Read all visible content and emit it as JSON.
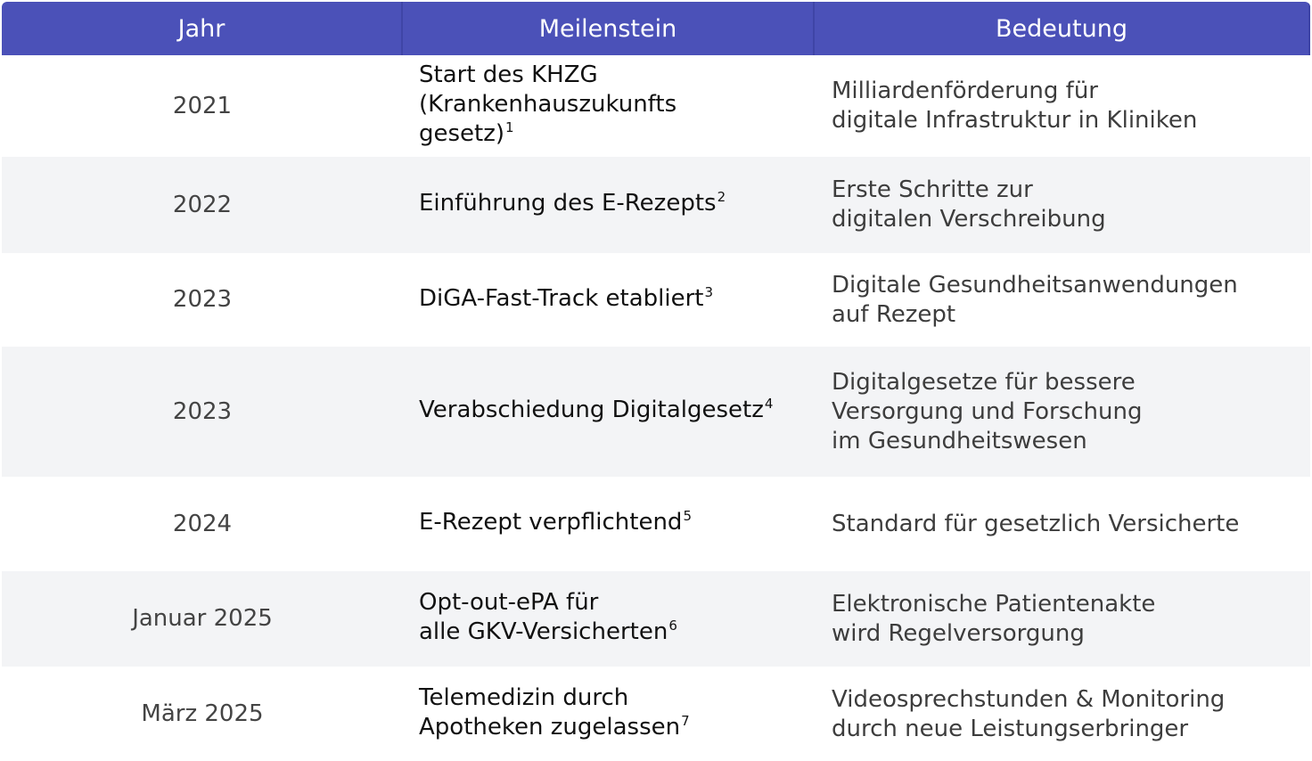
{
  "table": {
    "headers": [
      "Jahr",
      "Meilenstein",
      "Bedeutung"
    ],
    "rows": [
      {
        "year": "2021",
        "milestone": "Start des KHZG\n(Krankenhauszukunfts\ngesetz)",
        "footnote": "1",
        "meaning": "Milliardenförderung für\ndigitale Infrastruktur in Kliniken"
      },
      {
        "year": "2022",
        "milestone": "Einführung des E-Rezepts",
        "footnote": "2",
        "meaning": "Erste Schritte zur\ndigitalen Verschreibung"
      },
      {
        "year": "2023",
        "milestone": "DiGA-Fast-Track etabliert",
        "footnote": "3",
        "meaning": "Digitale Gesundheitsanwendungen\nauf Rezept"
      },
      {
        "year": "2023",
        "milestone": "Verabschiedung Digitalgesetz",
        "footnote": "4",
        "meaning": "Digitalgesetze für bessere\nVersorgung und Forschung\nim Gesundheitswesen"
      },
      {
        "year": "2024",
        "milestone": "E-Rezept verpflichtend",
        "footnote": "5",
        "meaning": "Standard für gesetzlich Versicherte"
      },
      {
        "year": "Januar 2025",
        "milestone": "Opt-out-ePA für\nalle GKV-Versicherten",
        "footnote": "6",
        "meaning": "Elektronische Patientenakte\nwird Regelversorgung"
      },
      {
        "year": "März 2025",
        "milestone": "Telemedizin durch\nApotheken zugelassen",
        "footnote": "7",
        "meaning": "Videosprechstunden & Monitoring\ndurch neue Leistungserbringer"
      }
    ]
  },
  "colors": {
    "header_bg": "#4b51b8",
    "header_text": "#ffffff",
    "alt_row_bg": "#f3f4f6"
  }
}
